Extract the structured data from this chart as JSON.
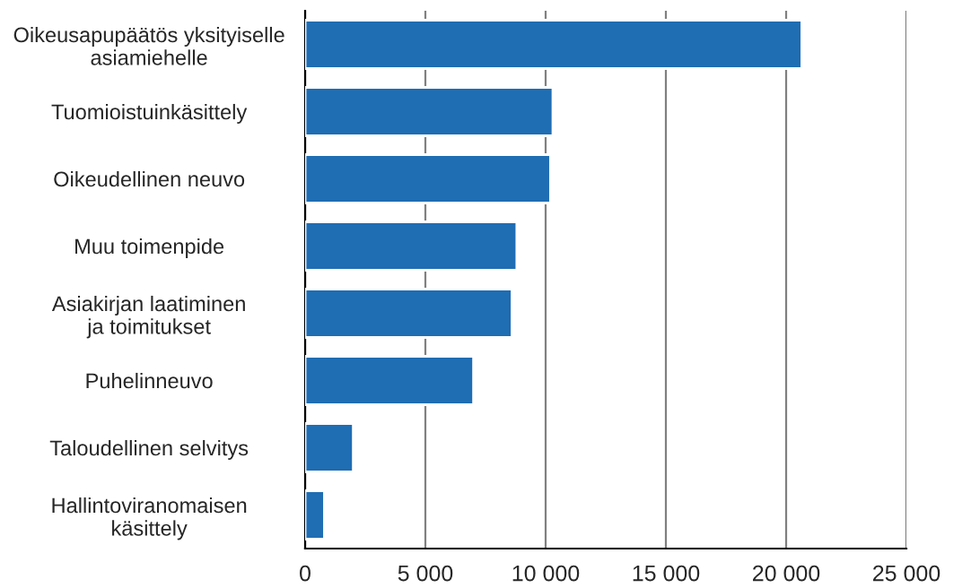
{
  "chart_data": {
    "type": "bar",
    "orientation": "horizontal",
    "categories": [
      "Oikeusapupäätös yksityiselle\nasiamiehelle",
      "Tuomioistuinkäsittely",
      "Oikeudellinen neuvo",
      "Muu toimenpide",
      "Asiakirjan laatiminen\nja toimitukset",
      "Puhelinneuvo",
      "Taloudellinen selvitys",
      "Hallintoviranomaisen\nkäsittely"
    ],
    "values": [
      20650,
      10300,
      10200,
      8800,
      8600,
      7000,
      2000,
      800
    ],
    "color": "#1f6db3",
    "xlim": [
      0,
      25000
    ],
    "xticks": [
      0,
      {
        "value": 5000,
        "label": "5 000"
      },
      {
        "value": 10000,
        "label": "10 000"
      },
      {
        "value": 15000,
        "label": "15 000"
      },
      {
        "value": 20000,
        "label": "20 000"
      },
      {
        "value": 25000,
        "label": "25 000"
      }
    ],
    "grid": "x"
  }
}
